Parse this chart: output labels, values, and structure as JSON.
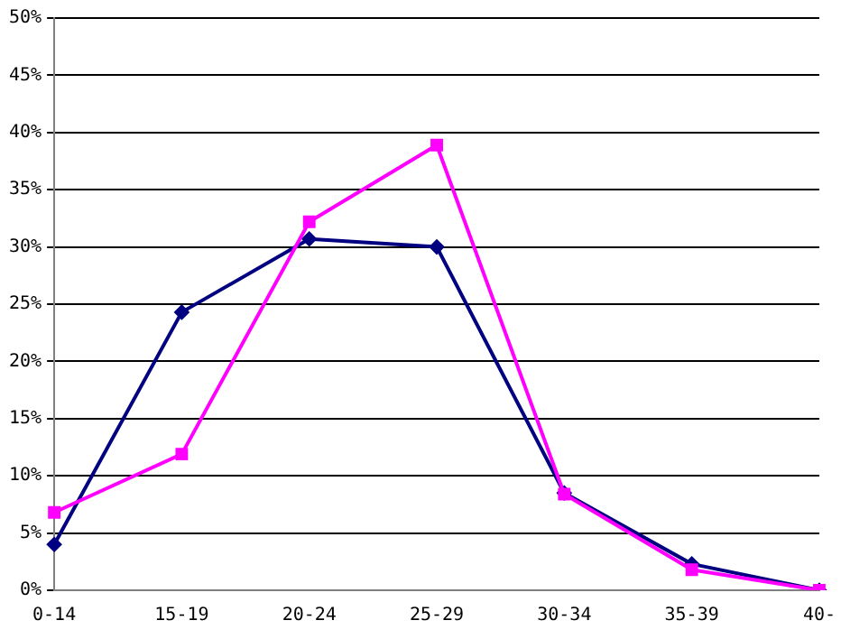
{
  "chart_data": {
    "type": "line",
    "categories": [
      "0-14",
      "15-19",
      "20-24",
      "25-29",
      "30-34",
      "35-39",
      "40-"
    ],
    "series": [
      {
        "color": "#000080",
        "marker": "diamond",
        "values": [
          4,
          24.3,
          30.7,
          30,
          8.5,
          2.3,
          0
        ]
      },
      {
        "color": "#ff00ff",
        "marker": "square",
        "values": [
          6.8,
          11.9,
          32.2,
          38.9,
          8.4,
          1.8,
          0
        ]
      }
    ],
    "ylim": [
      0,
      50
    ],
    "yticks": [
      {
        "value": 0,
        "label": "0%"
      },
      {
        "value": 5,
        "label": "5%"
      },
      {
        "value": 10,
        "label": "10%"
      },
      {
        "value": 15,
        "label": "15%"
      },
      {
        "value": 20,
        "label": "20%"
      },
      {
        "value": 25,
        "label": "25%"
      },
      {
        "value": 30,
        "label": "30%"
      },
      {
        "value": 35,
        "label": "35%"
      },
      {
        "value": 40,
        "label": "40%"
      },
      {
        "value": 45,
        "label": "45%"
      },
      {
        "value": 50,
        "label": "50%"
      }
    ],
    "grid": "y",
    "legend": false,
    "line_style": "solid"
  }
}
